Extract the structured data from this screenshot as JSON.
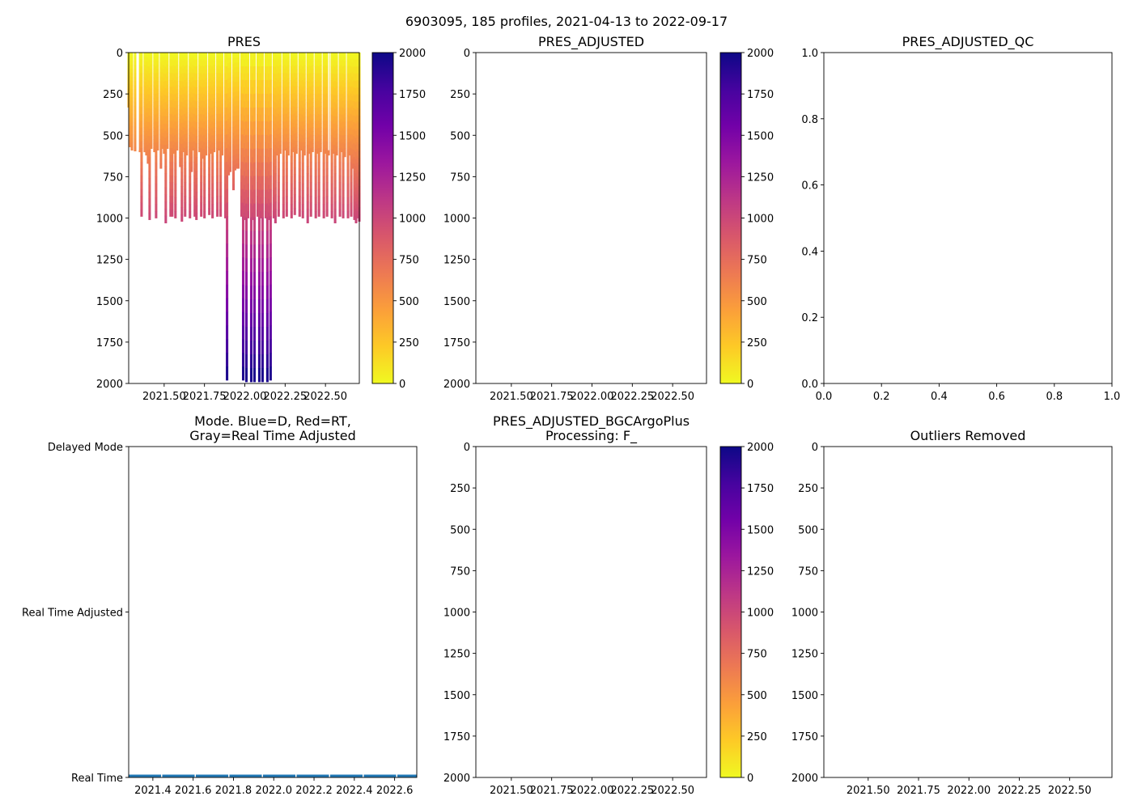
{
  "figure": {
    "suptitle": "6903095, 185 profiles, 2021-04-13 to 2022-09-17"
  },
  "colors": {
    "colormap": [
      "#0d0887",
      "#46039f",
      "#7201a8",
      "#9c179e",
      "#bd3786",
      "#d8576b",
      "#ed7953",
      "#fb9f3a",
      "#fdca26",
      "#f0f921"
    ],
    "mode_line": "#1f77b4"
  },
  "chart_data": [
    {
      "id": "pres",
      "type": "heatmap",
      "title": "PRES",
      "x_ticks": [
        "2021.50",
        "2021.75",
        "2022.00",
        "2022.25",
        "2022.50"
      ],
      "x_tick_values": [
        2021.5,
        2021.75,
        2022.0,
        2022.25,
        2022.5
      ],
      "xlim": [
        2021.28,
        2022.71
      ],
      "y_ticks": [
        "0",
        "250",
        "500",
        "750",
        "1000",
        "1250",
        "1500",
        "1750",
        "2000"
      ],
      "y_tick_values": [
        0,
        250,
        500,
        750,
        1000,
        1250,
        1500,
        1750,
        2000
      ],
      "ylim": [
        2000,
        0
      ],
      "colorbar": {
        "ticks": [
          "0",
          "250",
          "500",
          "750",
          "1000",
          "1250",
          "1500",
          "1750",
          "2000"
        ],
        "tick_values": [
          0,
          250,
          500,
          750,
          1000,
          1250,
          1500,
          1750,
          2000
        ],
        "range": [
          0,
          2000
        ]
      },
      "profiles": [
        {
          "t": 2021.28,
          "max": 330,
          "prev": 560
        },
        {
          "t": 2021.29,
          "max": 570,
          "prev": 600
        },
        {
          "t": 2021.3,
          "max": 590,
          "prev": 610
        },
        {
          "t": 2021.32,
          "max": 595,
          "prev": 610
        },
        {
          "t": 2021.35,
          "max": 600,
          "prev": 620
        },
        {
          "t": 2021.36,
          "max": 990
        },
        {
          "t": 2021.38,
          "max": 600,
          "prev": 620
        },
        {
          "t": 2021.39,
          "max": 620
        },
        {
          "t": 2021.4,
          "max": 670
        },
        {
          "t": 2021.41,
          "max": 1010
        },
        {
          "t": 2021.42,
          "max": 580
        },
        {
          "t": 2021.44,
          "max": 600
        },
        {
          "t": 2021.45,
          "max": 1000
        },
        {
          "t": 2021.46,
          "max": 590
        },
        {
          "t": 2021.48,
          "max": 700
        },
        {
          "t": 2021.49,
          "max": 580
        },
        {
          "t": 2021.5,
          "max": 610
        },
        {
          "t": 2021.51,
          "max": 1030
        },
        {
          "t": 2021.52,
          "max": 580
        },
        {
          "t": 2021.54,
          "max": 990
        },
        {
          "t": 2021.55,
          "max": 990
        },
        {
          "t": 2021.56,
          "max": 610
        },
        {
          "t": 2021.57,
          "max": 1000
        },
        {
          "t": 2021.58,
          "max": 590
        },
        {
          "t": 2021.6,
          "max": 690
        },
        {
          "t": 2021.61,
          "max": 1020
        },
        {
          "t": 2021.62,
          "max": 600
        },
        {
          "t": 2021.63,
          "max": 990
        },
        {
          "t": 2021.64,
          "max": 620
        },
        {
          "t": 2021.66,
          "max": 1000
        },
        {
          "t": 2021.67,
          "max": 720
        },
        {
          "t": 2021.68,
          "max": 590
        },
        {
          "t": 2021.69,
          "max": 990
        },
        {
          "t": 2021.7,
          "max": 1010
        },
        {
          "t": 2021.72,
          "max": 600
        },
        {
          "t": 2021.73,
          "max": 990
        },
        {
          "t": 2021.74,
          "max": 640
        },
        {
          "t": 2021.75,
          "max": 1000
        },
        {
          "t": 2021.76,
          "max": 620
        },
        {
          "t": 2021.78,
          "max": 980
        },
        {
          "t": 2021.79,
          "max": 610
        },
        {
          "t": 2021.8,
          "max": 1000
        },
        {
          "t": 2021.81,
          "max": 600
        },
        {
          "t": 2021.83,
          "max": 990
        },
        {
          "t": 2021.84,
          "max": 590
        },
        {
          "t": 2021.85,
          "max": 990
        },
        {
          "t": 2021.86,
          "max": 620
        },
        {
          "t": 2021.88,
          "max": 1000
        },
        {
          "t": 2021.89,
          "max": 1980
        },
        {
          "t": 2021.9,
          "max": 740
        },
        {
          "t": 2021.91,
          "max": 720
        },
        {
          "t": 2021.93,
          "max": 830
        },
        {
          "t": 2021.94,
          "max": 710
        },
        {
          "t": 2021.95,
          "max": 700
        },
        {
          "t": 2021.96,
          "max": 700
        },
        {
          "t": 2021.98,
          "max": 990
        },
        {
          "t": 2021.99,
          "max": 1980
        },
        {
          "t": 2022.0,
          "max": 1010
        },
        {
          "t": 2022.01,
          "max": 1990
        },
        {
          "t": 2022.02,
          "max": 1000
        },
        {
          "t": 2022.04,
          "max": 1990
        },
        {
          "t": 2022.05,
          "max": 1010
        },
        {
          "t": 2022.06,
          "max": 1990
        },
        {
          "t": 2022.08,
          "max": 990
        },
        {
          "t": 2022.09,
          "max": 1990
        },
        {
          "t": 2022.1,
          "max": 1000
        },
        {
          "t": 2022.11,
          "max": 1990
        },
        {
          "t": 2022.13,
          "max": 1000
        },
        {
          "t": 2022.14,
          "max": 1990
        },
        {
          "t": 2022.15,
          "max": 1010
        },
        {
          "t": 2022.16,
          "max": 1980
        },
        {
          "t": 2022.18,
          "max": 1000
        },
        {
          "t": 2022.19,
          "max": 1030
        },
        {
          "t": 2022.2,
          "max": 620
        },
        {
          "t": 2022.21,
          "max": 990
        },
        {
          "t": 2022.22,
          "max": 610
        },
        {
          "t": 2022.24,
          "max": 1000
        },
        {
          "t": 2022.25,
          "max": 590
        },
        {
          "t": 2022.26,
          "max": 990
        },
        {
          "t": 2022.27,
          "max": 620
        },
        {
          "t": 2022.29,
          "max": 1000
        },
        {
          "t": 2022.3,
          "max": 600
        },
        {
          "t": 2022.31,
          "max": 980
        },
        {
          "t": 2022.32,
          "max": 610
        },
        {
          "t": 2022.34,
          "max": 990
        },
        {
          "t": 2022.35,
          "max": 590
        },
        {
          "t": 2022.36,
          "max": 1000
        },
        {
          "t": 2022.37,
          "max": 620
        },
        {
          "t": 2022.39,
          "max": 1030
        },
        {
          "t": 2022.4,
          "max": 610
        },
        {
          "t": 2022.41,
          "max": 990
        },
        {
          "t": 2022.42,
          "max": 600
        },
        {
          "t": 2022.44,
          "max": 1000
        },
        {
          "t": 2022.45,
          "max": 610
        },
        {
          "t": 2022.46,
          "max": 990
        },
        {
          "t": 2022.47,
          "max": 600
        },
        {
          "t": 2022.49,
          "max": 1000
        },
        {
          "t": 2022.5,
          "max": 610
        },
        {
          "t": 2022.51,
          "max": 990
        },
        {
          "t": 2022.52,
          "max": 620
        },
        {
          "t": 2022.54,
          "max": 1000
        },
        {
          "t": 2022.55,
          "max": 610
        },
        {
          "t": 2022.56,
          "max": 1030
        },
        {
          "t": 2022.57,
          "max": 620
        },
        {
          "t": 2022.59,
          "max": 990
        },
        {
          "t": 2022.6,
          "max": 600
        },
        {
          "t": 2022.61,
          "max": 1000
        },
        {
          "t": 2022.62,
          "max": 630
        },
        {
          "t": 2022.64,
          "max": 1000
        },
        {
          "t": 2022.65,
          "max": 620
        },
        {
          "t": 2022.66,
          "max": 990
        },
        {
          "t": 2022.67,
          "max": 700
        },
        {
          "t": 2022.68,
          "max": 1010
        },
        {
          "t": 2022.69,
          "max": 1030
        },
        {
          "t": 2022.7,
          "max": 1000
        },
        {
          "t": 2022.71,
          "max": 1020
        }
      ],
      "gaps": [
        2021.34,
        2022.52
      ]
    },
    {
      "id": "pres_adjusted",
      "type": "heatmap",
      "title": "PRES_ADJUSTED",
      "x_ticks": [
        "2021.50",
        "2021.75",
        "2022.00",
        "2022.25",
        "2022.50"
      ],
      "x_tick_values": [
        2021.5,
        2021.75,
        2022.0,
        2022.25,
        2022.5
      ],
      "xlim": [
        2021.28,
        2022.71
      ],
      "y_ticks": [
        "0",
        "250",
        "500",
        "750",
        "1000",
        "1250",
        "1500",
        "1750",
        "2000"
      ],
      "y_tick_values": [
        0,
        250,
        500,
        750,
        1000,
        1250,
        1500,
        1750,
        2000
      ],
      "ylim": [
        2000,
        0
      ],
      "colorbar": {
        "ticks": [
          "0",
          "250",
          "500",
          "750",
          "1000",
          "1250",
          "1500",
          "1750",
          "2000"
        ],
        "tick_values": [
          0,
          250,
          500,
          750,
          1000,
          1250,
          1500,
          1750,
          2000
        ],
        "range": [
          0,
          2000
        ]
      },
      "profiles": []
    },
    {
      "id": "pres_adjusted_qc",
      "type": "scatter",
      "title": "PRES_ADJUSTED_QC",
      "x_ticks": [
        "0.0",
        "0.2",
        "0.4",
        "0.6",
        "0.8",
        "1.0"
      ],
      "x_tick_values": [
        0,
        0.2,
        0.4,
        0.6,
        0.8,
        1.0
      ],
      "xlim": [
        0,
        1
      ],
      "y_ticks": [
        "0.0",
        "0.2",
        "0.4",
        "0.6",
        "0.8",
        "1.0"
      ],
      "y_tick_values": [
        0,
        0.2,
        0.4,
        0.6,
        0.8,
        1.0
      ],
      "ylim": [
        0,
        1
      ]
    },
    {
      "id": "mode",
      "type": "line",
      "title_lines": [
        "Mode. Blue=D, Red=RT,",
        "Gray=Real Time Adjusted"
      ],
      "x_ticks": [
        "2021.4",
        "2021.6",
        "2021.8",
        "2022.0",
        "2022.2",
        "2022.4",
        "2022.6"
      ],
      "x_tick_values": [
        2021.4,
        2021.6,
        2021.8,
        2022.0,
        2022.2,
        2022.4,
        2022.6
      ],
      "xlim": [
        2021.28,
        2022.71
      ],
      "y_ticks": [
        "Delayed Mode",
        "Real Time Adjusted",
        "Real Time"
      ],
      "y_tick_values": [
        2,
        1,
        0
      ],
      "ylim": [
        0,
        2
      ],
      "series": [
        {
          "name": "mode",
          "x": [
            2021.28,
            2022.71
          ],
          "y": [
            0,
            0
          ]
        }
      ]
    },
    {
      "id": "pres_adjusted_bgc",
      "type": "heatmap",
      "title_lines": [
        "PRES_ADJUSTED_BGCArgoPlus",
        "Processing: F_"
      ],
      "x_ticks": [
        "2021.50",
        "2021.75",
        "2022.00",
        "2022.25",
        "2022.50"
      ],
      "x_tick_values": [
        2021.5,
        2021.75,
        2022.0,
        2022.25,
        2022.5
      ],
      "xlim": [
        2021.28,
        2022.71
      ],
      "y_ticks": [
        "0",
        "250",
        "500",
        "750",
        "1000",
        "1250",
        "1500",
        "1750",
        "2000"
      ],
      "y_tick_values": [
        0,
        250,
        500,
        750,
        1000,
        1250,
        1500,
        1750,
        2000
      ],
      "ylim": [
        2000,
        0
      ],
      "colorbar": {
        "ticks": [
          "0",
          "250",
          "500",
          "750",
          "1000",
          "1250",
          "1500",
          "1750",
          "2000"
        ],
        "tick_values": [
          0,
          250,
          500,
          750,
          1000,
          1250,
          1500,
          1750,
          2000
        ],
        "range": [
          0,
          2000
        ]
      },
      "profiles": []
    },
    {
      "id": "outliers",
      "type": "scatter",
      "title": "Outliers Removed",
      "x_ticks": [
        "2021.50",
        "2021.75",
        "2022.00",
        "2022.25",
        "2022.50"
      ],
      "x_tick_values": [
        2021.5,
        2021.75,
        2022.0,
        2022.25,
        2022.5
      ],
      "xlim": [
        2021.28,
        2022.71
      ],
      "y_ticks": [
        "0",
        "250",
        "500",
        "750",
        "1000",
        "1250",
        "1500",
        "1750",
        "2000"
      ],
      "y_tick_values": [
        0,
        250,
        500,
        750,
        1000,
        1250,
        1500,
        1750,
        2000
      ],
      "ylim": [
        2000,
        0
      ]
    }
  ]
}
